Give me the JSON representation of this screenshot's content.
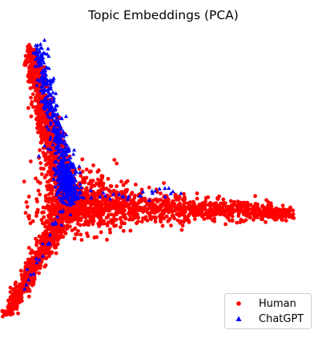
{
  "chart_data": {
    "type": "scatter",
    "title": "Topic Embeddings (PCA)",
    "xlabel": "",
    "ylabel": "",
    "axes_visible": false,
    "grid": false,
    "legend_position": "bottom-right",
    "series": [
      {
        "name": "Human",
        "marker": "circle",
        "color": "#ff0000",
        "shape": "three-armed star: arm to upper-left, arm to right, arm to lower-left, dense core near center",
        "arms": [
          {
            "from": [
              0.0,
              0.0
            ],
            "to": [
              -0.5,
              2.0
            ]
          },
          {
            "from": [
              0.0,
              0.0
            ],
            "to": [
              3.0,
              -0.1
            ]
          },
          {
            "from": [
              0.0,
              0.0
            ],
            "to": [
              -0.8,
              -1.4
            ]
          }
        ],
        "isolated_point": [
          -0.52,
          -0.15
        ]
      },
      {
        "name": "ChatGPT",
        "marker": "triangle",
        "color": "#0000ff",
        "shape": "concentrated along upper-left arm and core, sparse on right and lower-left arms",
        "arms": [
          {
            "from": [
              0.05,
              0.1
            ],
            "to": [
              -0.4,
              2.05
            ]
          },
          {
            "from": [
              0.05,
              0.1
            ],
            "to": [
              1.6,
              0.15
            ]
          },
          {
            "from": [
              0.05,
              0.1
            ],
            "to": [
              -0.7,
              -1.25
            ]
          }
        ]
      }
    ],
    "xlim": [
      -0.6,
      3.2
    ],
    "ylim": [
      -1.5,
      2.15
    ]
  }
}
